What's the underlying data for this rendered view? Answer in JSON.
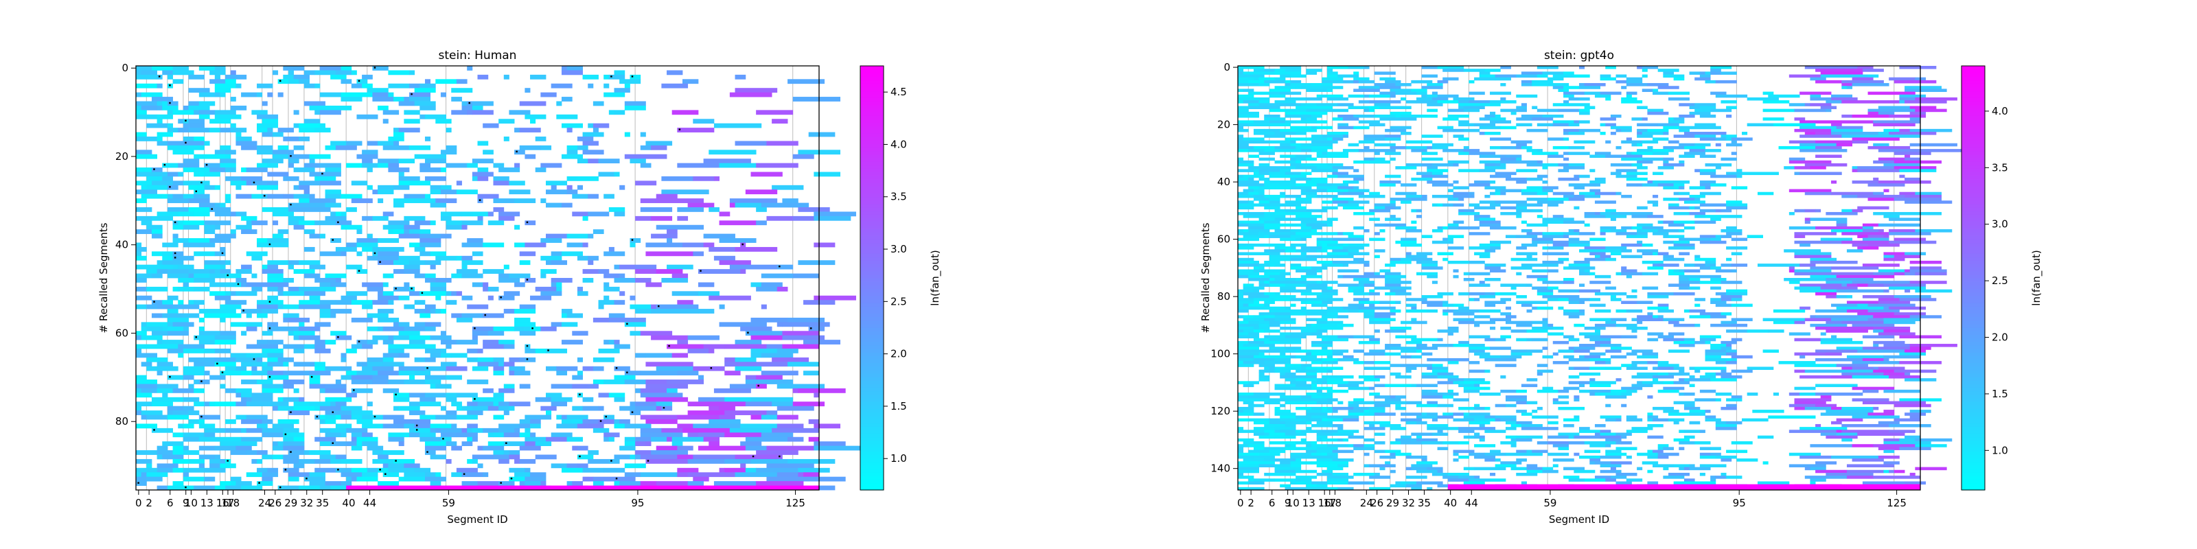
{
  "chart_data": [
    {
      "type": "heatmap",
      "title": "stein: Human",
      "xlabel": "Segment ID",
      "ylabel": "# Recalled Segments",
      "x_tick_labels": [
        0,
        2,
        6,
        9,
        10,
        13,
        16,
        17,
        18,
        24,
        26,
        29,
        32,
        35,
        40,
        44,
        59,
        95,
        125
      ],
      "x_range": [
        0,
        130
      ],
      "y_range": [
        0,
        96
      ],
      "y_inverted": true,
      "y_ticks": [
        0,
        20,
        40,
        60,
        80
      ],
      "vertical_gridlines_at": [
        2,
        6,
        9,
        10,
        13,
        16,
        17,
        18,
        24,
        26,
        29,
        32,
        35,
        40,
        44,
        59,
        95,
        125
      ],
      "black_markers": true,
      "colorbar": {
        "label": "ln(fan_out)",
        "cmap": "cool",
        "vmin": 0.7,
        "vmax": 4.75,
        "ticks": [
          1.0,
          1.5,
          2.0,
          2.5,
          3.0,
          3.5,
          4.0,
          4.5
        ]
      }
    },
    {
      "type": "heatmap",
      "title": "stein: gpt4o",
      "xlabel": "Segment ID",
      "ylabel": "# Recalled Segments",
      "x_tick_labels": [
        0,
        2,
        6,
        9,
        10,
        13,
        16,
        17,
        18,
        24,
        26,
        29,
        32,
        35,
        40,
        44,
        59,
        95,
        125
      ],
      "x_range": [
        0,
        130
      ],
      "y_range": [
        0,
        148
      ],
      "y_inverted": true,
      "y_ticks": [
        0,
        20,
        40,
        60,
        80,
        100,
        120,
        140
      ],
      "vertical_gridlines_at": [
        2,
        6,
        9,
        10,
        13,
        16,
        17,
        18,
        24,
        26,
        29,
        32,
        35,
        40,
        44,
        59,
        95,
        125
      ],
      "black_markers": false,
      "colorbar": {
        "label": "ln(fan_out)",
        "cmap": "cool",
        "vmin": 0.65,
        "vmax": 4.4,
        "ticks": [
          1.0,
          1.5,
          2.0,
          2.5,
          3.0,
          3.5,
          4.0
        ]
      }
    }
  ]
}
